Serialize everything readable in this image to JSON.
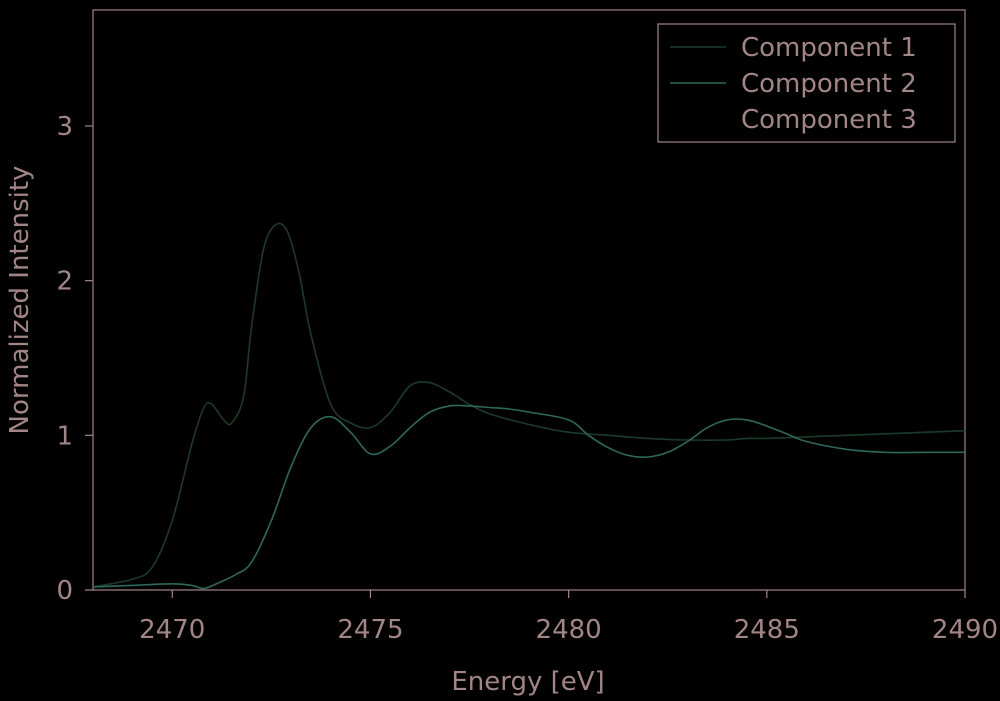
{
  "colors": {
    "background": "#000000",
    "axis": "#a48585",
    "text": "#a48585",
    "series": [
      "#1c3a2c",
      "#2b6a5a",
      "#000000"
    ]
  },
  "chart_data": {
    "type": "line",
    "title": "",
    "xlabel": "Energy [eV]",
    "ylabel": "Normalized Intensity",
    "xlim": [
      2468,
      2490
    ],
    "ylim": [
      0,
      3.75
    ],
    "xticks": [
      2470,
      2475,
      2480,
      2485,
      2490
    ],
    "yticks": [
      0,
      1,
      2,
      3
    ],
    "grid": false,
    "legend_position": "top-right",
    "series": [
      {
        "name": "Component 1",
        "x": [
          2468.0,
          2469.0,
          2469.5,
          2470.0,
          2470.5,
          2470.8,
          2471.0,
          2471.3,
          2471.5,
          2471.8,
          2472.0,
          2472.3,
          2472.6,
          2472.9,
          2473.2,
          2473.5,
          2474.0,
          2474.5,
          2475.0,
          2475.5,
          2476.0,
          2476.5,
          2477.0,
          2477.5,
          2478.0,
          2479.0,
          2480.0,
          2481.0,
          2482.0,
          2483.0,
          2484.0,
          2484.5,
          2485.0,
          2486.0,
          2487.0,
          2488.0,
          2489.0,
          2490.0
        ],
        "y": [
          0.02,
          0.07,
          0.15,
          0.45,
          0.95,
          1.18,
          1.2,
          1.1,
          1.08,
          1.25,
          1.7,
          2.2,
          2.36,
          2.32,
          2.05,
          1.65,
          1.2,
          1.08,
          1.05,
          1.15,
          1.32,
          1.34,
          1.28,
          1.2,
          1.14,
          1.07,
          1.02,
          1.0,
          0.98,
          0.97,
          0.97,
          0.98,
          0.98,
          0.99,
          1.0,
          1.01,
          1.02,
          1.03
        ]
      },
      {
        "name": "Component 2",
        "x": [
          2468.0,
          2469.0,
          2470.0,
          2470.5,
          2470.8,
          2471.2,
          2471.6,
          2472.0,
          2472.5,
          2473.0,
          2473.5,
          2474.0,
          2474.5,
          2475.0,
          2475.5,
          2476.0,
          2476.5,
          2477.0,
          2477.5,
          2478.0,
          2478.5,
          2479.0,
          2480.0,
          2480.5,
          2481.0,
          2481.5,
          2482.0,
          2482.5,
          2483.0,
          2483.5,
          2484.0,
          2484.5,
          2485.0,
          2485.5,
          2486.0,
          2487.0,
          2488.0,
          2489.0,
          2490.0
        ],
        "y": [
          0.02,
          0.03,
          0.04,
          0.03,
          0.01,
          0.05,
          0.1,
          0.18,
          0.45,
          0.8,
          1.05,
          1.12,
          1.02,
          0.88,
          0.93,
          1.05,
          1.15,
          1.19,
          1.19,
          1.18,
          1.17,
          1.15,
          1.1,
          1.0,
          0.92,
          0.87,
          0.86,
          0.89,
          0.96,
          1.05,
          1.1,
          1.1,
          1.06,
          1.01,
          0.96,
          0.91,
          0.89,
          0.89,
          0.89
        ]
      },
      {
        "name": "Component 3",
        "x": [],
        "y": []
      }
    ]
  }
}
